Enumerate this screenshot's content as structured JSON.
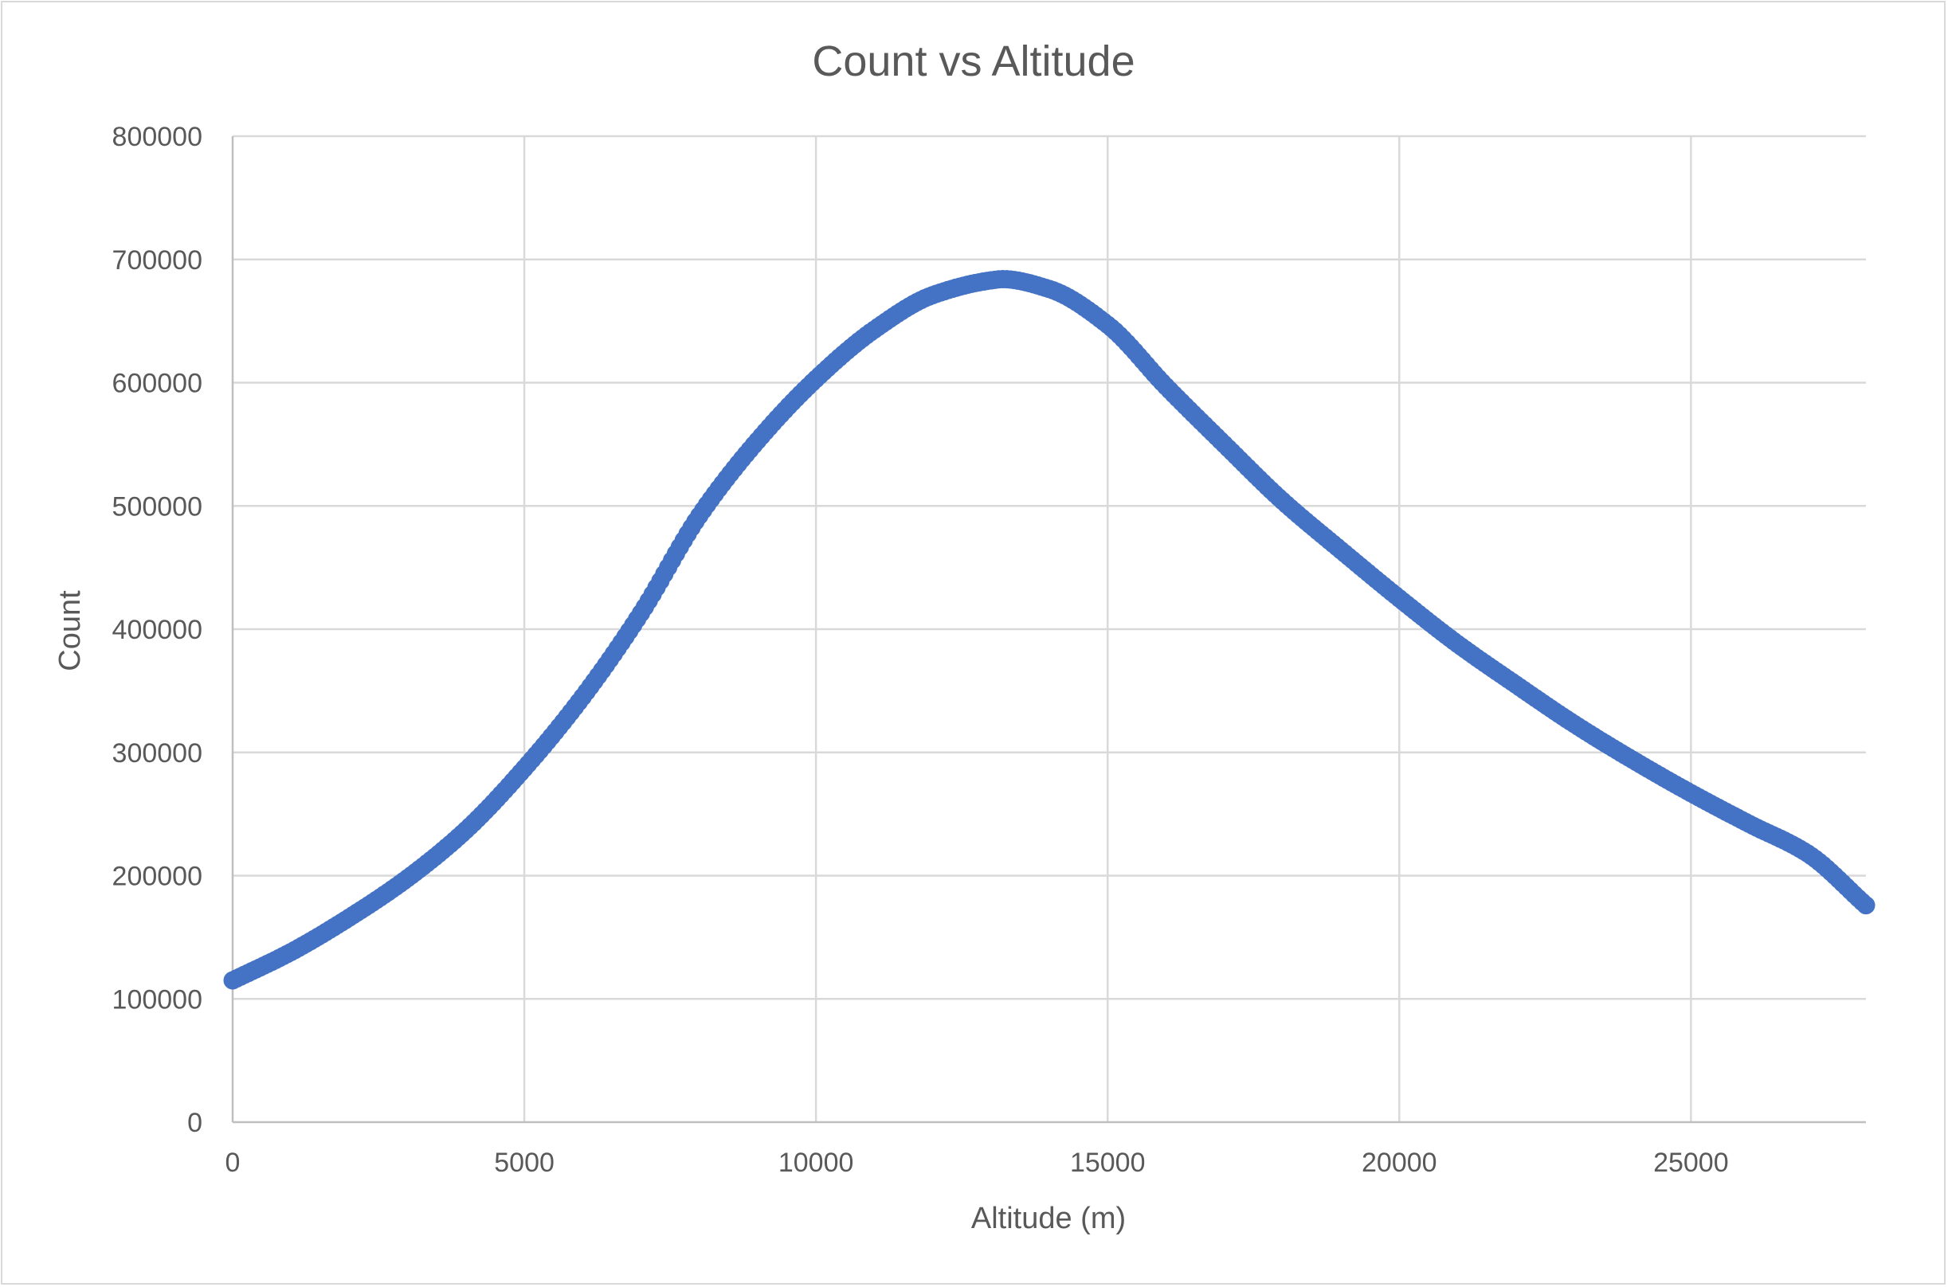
{
  "chart_data": {
    "type": "scatter",
    "title": "Count vs Altitude",
    "xlabel": "Altitude (m)",
    "ylabel": "Count",
    "xlim": [
      0,
      28000
    ],
    "ylim": [
      0,
      800000
    ],
    "xticks": [
      0,
      5000,
      10000,
      15000,
      20000,
      25000
    ],
    "yticks": [
      0,
      100000,
      200000,
      300000,
      400000,
      500000,
      600000,
      700000,
      800000
    ],
    "grid": true,
    "legend": "none",
    "series_color": "#4472C4",
    "series": [
      {
        "x": [
          0,
          1000,
          2000,
          3000,
          4000,
          5000,
          6000,
          7000,
          8000,
          9000,
          10000,
          11000,
          12000,
          13000,
          13200,
          14000,
          15000,
          16000,
          17000,
          18000,
          19000,
          20000,
          21000,
          22000,
          23000,
          24000,
          25000,
          26000,
          27000,
          28000
        ],
        "y": [
          115000,
          138000,
          166000,
          198000,
          237000,
          287000,
          345000,
          413000,
          492000,
          553000,
          603000,
          643000,
          671000,
          683000,
          684000,
          676000,
          647000,
          597000,
          550000,
          504000,
          464000,
          425000,
          388000,
          355000,
          323000,
          294000,
          267000,
          242000,
          218000,
          176000
        ]
      }
    ]
  }
}
